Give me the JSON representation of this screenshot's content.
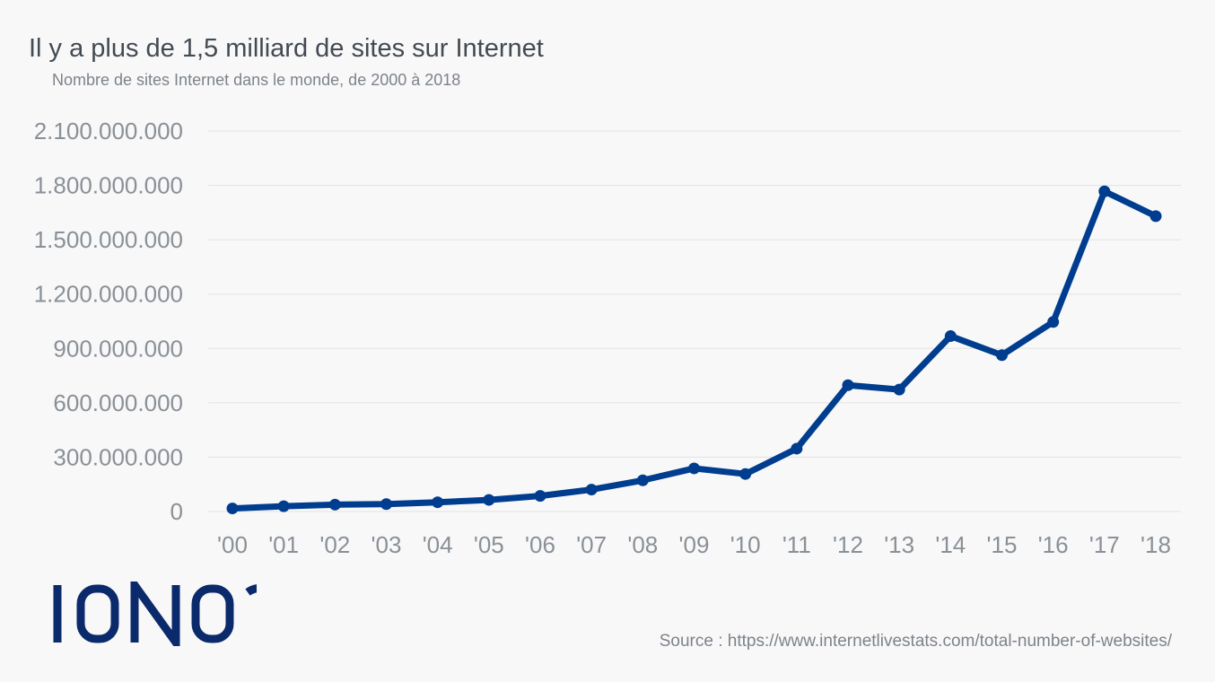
{
  "header": {
    "title": "Il y a plus de 1,5 milliard de sites sur Internet",
    "subtitle": "Nombre de sites Internet dans le monde, de 2000 à 2018"
  },
  "footer": {
    "source": "Source : https://www.internetlivestats.com/total-number-of-websites/",
    "logo_text": "IONOS"
  },
  "colors": {
    "line": "#003d8f",
    "grid": "#e2e2e2",
    "axis_text": "#8a9097",
    "logo": "#0b2a6b"
  },
  "chart_data": {
    "type": "line",
    "title": "Il y a plus de 1,5 milliard de sites sur Internet",
    "subtitle": "Nombre de sites Internet dans le monde, de 2000 à 2018",
    "categories": [
      "'00",
      "'01",
      "'02",
      "'03",
      "'04",
      "'05",
      "'06",
      "'07",
      "'08",
      "'09",
      "'10",
      "'11",
      "'12",
      "'13",
      "'14",
      "'15",
      "'16",
      "'17",
      "'18"
    ],
    "values": [
      17000000,
      29000000,
      38000000,
      41000000,
      51000000,
      64000000,
      86000000,
      121000000,
      172000000,
      238000000,
      207000000,
      347000000,
      697000000,
      673000000,
      968000000,
      863000000,
      1046000000,
      1767000000,
      1630000000
    ],
    "yticks": [
      "0",
      "300.000.000",
      "600.000.000",
      "900.000.000",
      "1.200.000.000",
      "1.500.000.000",
      "1.800.000.000",
      "2.100.000.000"
    ],
    "ylim": [
      0,
      2100000000
    ],
    "grid": true,
    "legend": "none"
  }
}
